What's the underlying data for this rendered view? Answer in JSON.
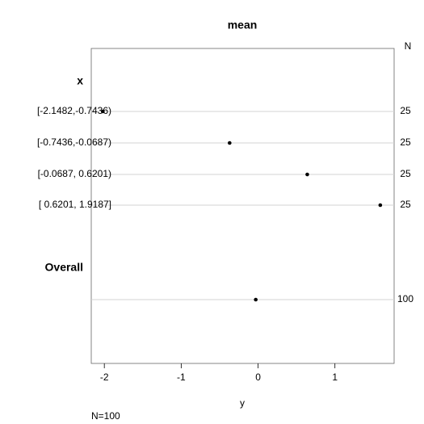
{
  "chart_data": {
    "type": "dot",
    "title": "mean",
    "xlabel": "y",
    "footnote": "N=100",
    "n_header": "N",
    "groups": [
      "x",
      "Overall"
    ],
    "categories": [
      "[-2.1482,-0.7436)",
      "[-0.7436,-0.0687)",
      "[-0.0687, 0.6201)",
      "[ 0.6201, 1.9187]",
      null
    ],
    "category_group": [
      0,
      0,
      0,
      0,
      1
    ],
    "values": [
      -2.02,
      -0.37,
      0.64,
      1.59,
      -0.03
    ],
    "n": [
      25,
      25,
      25,
      25,
      100
    ],
    "color": "#000000",
    "xlim": [
      -2.17,
      1.77
    ],
    "xticks": [
      -2,
      -1,
      0,
      1
    ],
    "grid": true
  }
}
